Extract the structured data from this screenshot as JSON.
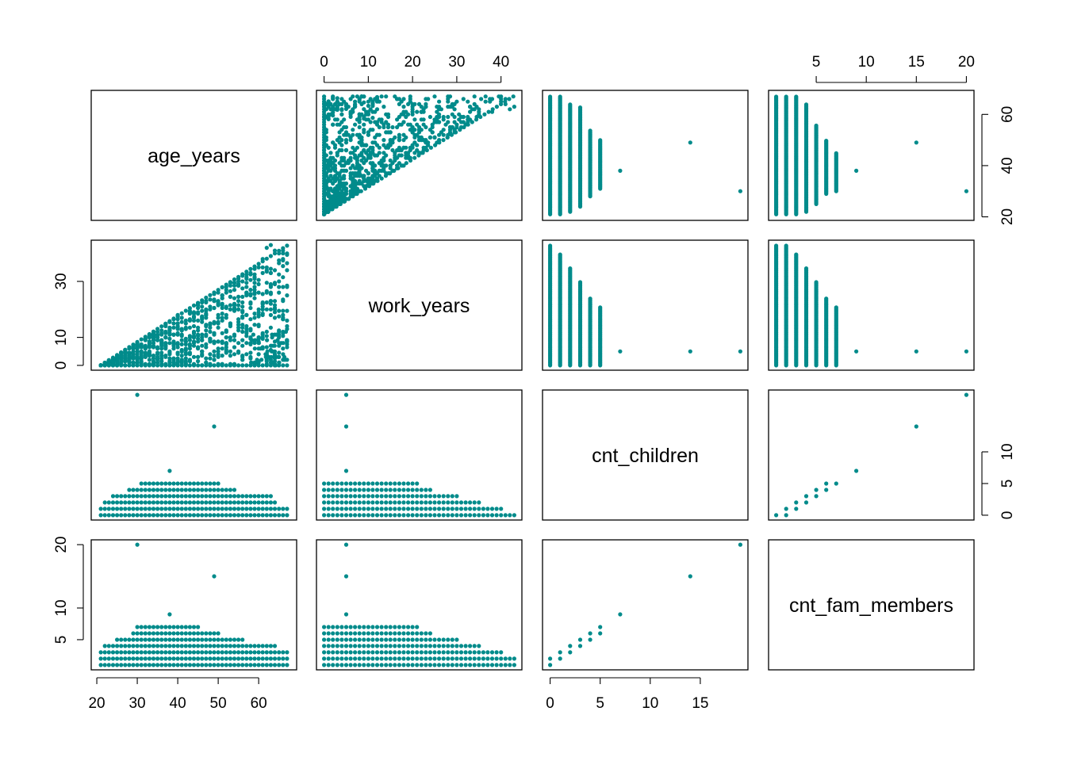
{
  "chart_data": {
    "type": "scatter",
    "kind": "scatterplot-matrix",
    "point_color": "#008B8B",
    "variables": [
      {
        "name": "age_years",
        "range": [
          20.5,
          67.5
        ],
        "ticks": [
          20,
          30,
          40,
          50,
          60
        ]
      },
      {
        "name": "work_years",
        "range": [
          0,
          43
        ],
        "ticks": [
          0,
          10,
          20,
          30,
          40
        ]
      },
      {
        "name": "cnt_children",
        "range": [
          0,
          19
        ],
        "ticks": [
          0,
          5,
          10,
          15
        ]
      },
      {
        "name": "cnt_fam_members",
        "range": [
          1,
          20
        ],
        "ticks": [
          5,
          10,
          15,
          20
        ]
      }
    ],
    "axis_ticks": {
      "top": {
        "0": [],
        "1": [
          0,
          10,
          20,
          30,
          40
        ],
        "2": [],
        "3": [
          5,
          10,
          15,
          20
        ]
      },
      "bottom": {
        "0": [
          20,
          30,
          40,
          50,
          60
        ],
        "1": [],
        "2": [
          0,
          5,
          10,
          15
        ],
        "3": []
      },
      "left": {
        "0": [],
        "1": [
          0,
          10,
          30
        ],
        "2": [],
        "3": [
          5,
          10,
          20
        ]
      },
      "right": {
        "0": [
          20,
          40,
          60
        ],
        "1": [],
        "2": [
          0,
          5,
          10
        ],
        "3": []
      }
    },
    "pairs": {
      "age_vs_work": {
        "age_range": [
          21,
          67
        ],
        "work_max_rule": "work_years <= age_years - 21 (approx.)",
        "extreme_points": [
          [
            63,
            43
          ],
          [
            64,
            41
          ],
          [
            65,
            40
          ],
          [
            66,
            38
          ],
          [
            62,
            42
          ],
          [
            61,
            38
          ],
          [
            60,
            35
          ],
          [
            58,
            33
          ],
          [
            56,
            32
          ],
          [
            55,
            30
          ],
          [
            52,
            28
          ],
          [
            50,
            26
          ],
          [
            45,
            22
          ],
          [
            40,
            18
          ],
          [
            35,
            12
          ],
          [
            30,
            7
          ],
          [
            25,
            3
          ]
        ]
      },
      "children_vs_fam": [
        [
          0,
          1
        ],
        [
          0,
          2
        ],
        [
          1,
          2
        ],
        [
          1,
          3
        ],
        [
          2,
          3
        ],
        [
          2,
          4
        ],
        [
          3,
          4
        ],
        [
          3,
          5
        ],
        [
          4,
          5
        ],
        [
          4,
          6
        ],
        [
          5,
          6
        ],
        [
          5,
          7
        ],
        [
          7,
          9
        ],
        [
          14,
          15
        ],
        [
          19,
          20
        ]
      ],
      "children_vs_age": {
        "0": [
          21,
          67
        ],
        "1": [
          21,
          67
        ],
        "2": [
          22,
          64
        ],
        "3": [
          24,
          63
        ],
        "4": [
          28,
          54
        ],
        "5": [
          31,
          50
        ],
        "7": [
          38,
          38
        ],
        "14": [
          49,
          49
        ],
        "19": [
          30,
          30
        ]
      },
      "children_vs_work": {
        "0": [
          0,
          43
        ],
        "1": [
          0,
          40
        ],
        "2": [
          0,
          35
        ],
        "3": [
          0,
          30
        ],
        "4": [
          0,
          24
        ],
        "5": [
          0,
          21
        ],
        "7": [
          5,
          5
        ],
        "14": [
          5,
          5
        ],
        "19": [
          5,
          5
        ]
      },
      "fam_vs_age": {
        "1": [
          21,
          67
        ],
        "2": [
          21,
          67
        ],
        "3": [
          21,
          67
        ],
        "4": [
          22,
          64
        ],
        "5": [
          25,
          56
        ],
        "6": [
          29,
          50
        ],
        "7": [
          30,
          45
        ],
        "9": [
          38,
          38
        ],
        "15": [
          49,
          49
        ],
        "20": [
          30,
          30
        ]
      },
      "fam_vs_work": {
        "1": [
          0,
          43
        ],
        "2": [
          0,
          43
        ],
        "3": [
          0,
          40
        ],
        "4": [
          0,
          35
        ],
        "5": [
          0,
          30
        ],
        "6": [
          0,
          24
        ],
        "7": [
          0,
          21
        ],
        "9": [
          5,
          5
        ],
        "15": [
          5,
          5
        ],
        "20": [
          5,
          5
        ]
      }
    }
  }
}
